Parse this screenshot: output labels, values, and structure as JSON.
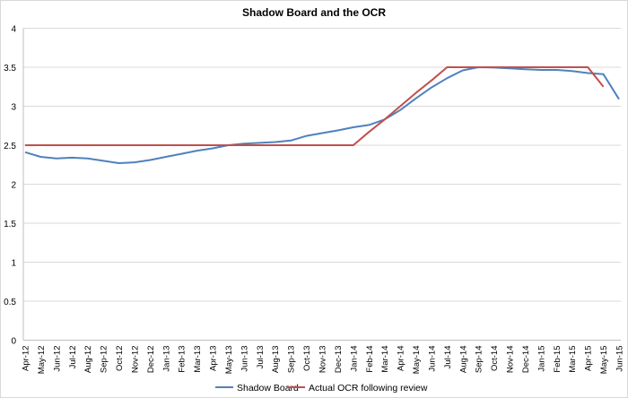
{
  "chart_data": {
    "type": "line",
    "title": "Shadow Board and the OCR",
    "xlabel": "",
    "ylabel": "",
    "ylim": [
      0,
      4
    ],
    "yticks": [
      "0",
      "0.5",
      "1",
      "1.5",
      "2",
      "2.5",
      "3",
      "3.5",
      "4"
    ],
    "grid": true,
    "legend": "bottom",
    "categories": [
      "Apr-12",
      "May-12",
      "Jun-12",
      "Jul-12",
      "Aug-12",
      "Sep-12",
      "Oct-12",
      "Nov-12",
      "Dec-12",
      "Jan-13",
      "Feb-13",
      "Mar-13",
      "Apr-13",
      "May-13",
      "Jun-13",
      "Jul-13",
      "Aug-13",
      "Sep-13",
      "Oct-13",
      "Nov-13",
      "Dec-13",
      "Jan-14",
      "Feb-14",
      "Mar-14",
      "Apr-14",
      "May-14",
      "Jun-14",
      "Jul-14",
      "Aug-14",
      "Sep-14",
      "Oct-14",
      "Nov-14",
      "Dec-14",
      "Jan-15",
      "Feb-15",
      "Mar-15",
      "Apr-15",
      "May-15",
      "Jun-15"
    ],
    "series": [
      {
        "name": "Shadow Board",
        "color": "#4f81bd",
        "values": [
          2.41,
          2.35,
          2.33,
          2.34,
          2.33,
          2.3,
          2.27,
          2.28,
          2.31,
          2.35,
          2.39,
          2.43,
          2.46,
          2.5,
          2.52,
          2.53,
          2.54,
          2.56,
          2.62,
          2.655,
          2.69,
          2.73,
          2.76,
          2.83,
          2.95,
          3.1,
          3.24,
          3.36,
          3.46,
          3.5,
          3.495,
          3.485,
          3.475,
          3.465,
          3.465,
          3.45,
          3.425,
          3.41,
          3.09
        ]
      },
      {
        "name": "Actual OCR following review",
        "color": "#c0504d",
        "values": [
          2.5,
          2.5,
          2.5,
          2.5,
          2.5,
          2.5,
          2.5,
          2.5,
          2.5,
          2.5,
          2.5,
          2.5,
          2.5,
          2.5,
          2.5,
          2.5,
          2.5,
          2.5,
          2.5,
          2.5,
          2.5,
          2.5,
          2.67,
          2.83,
          3.0,
          3.17,
          3.33,
          3.5,
          3.5,
          3.5,
          3.5,
          3.5,
          3.5,
          3.5,
          3.5,
          3.5,
          3.5,
          3.25,
          null
        ]
      }
    ]
  }
}
